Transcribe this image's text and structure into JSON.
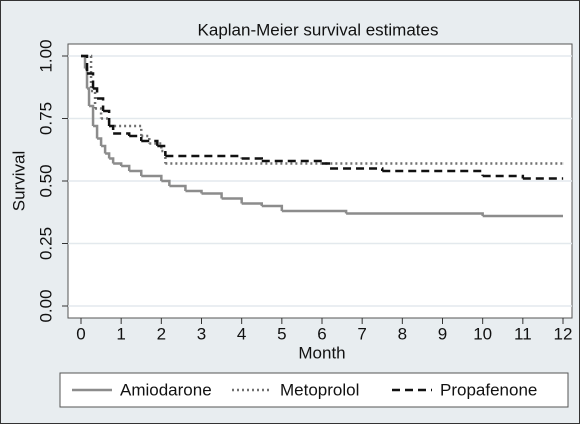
{
  "chart_data": {
    "type": "line",
    "drawstyle": "steps-post",
    "title": "Kaplan-Meier survival estimates",
    "x_label": "Month",
    "y_label": "Survival",
    "xlim": [
      0,
      12
    ],
    "xticks": [
      0,
      1,
      2,
      3,
      4,
      5,
      6,
      7,
      8,
      9,
      10,
      11,
      12
    ],
    "ylim": [
      0,
      1
    ],
    "yticks": [
      {
        "value": 0,
        "label": "0.00"
      },
      0.25,
      {
        "value": 0.5,
        "label": "0.50"
      },
      0.75,
      {
        "value": 1,
        "label": "1.00"
      }
    ],
    "grid": true,
    "legend": "bottom",
    "series": [
      {
        "name": "Amiodarone",
        "color": "#8c8c8c",
        "dash": "solid",
        "x": [
          0,
          0.1,
          0.15,
          0.2,
          0.3,
          0.4,
          0.5,
          0.6,
          0.7,
          0.8,
          1.0,
          1.2,
          1.5,
          2.0,
          2.2,
          2.6,
          3.0,
          3.5,
          4.0,
          4.5,
          5.0,
          6.6,
          10.0,
          12
        ],
        "values": [
          1.0,
          0.95,
          0.87,
          0.8,
          0.72,
          0.67,
          0.64,
          0.61,
          0.59,
          0.57,
          0.56,
          0.54,
          0.52,
          0.5,
          0.48,
          0.46,
          0.45,
          0.43,
          0.41,
          0.4,
          0.38,
          0.37,
          0.36,
          0.36
        ]
      },
      {
        "name": "Metoprolol",
        "color": "#707070",
        "dash": "dotted",
        "x": [
          0,
          0.25,
          0.35,
          0.5,
          0.7,
          1.5,
          1.7,
          2.0,
          2.1,
          12
        ],
        "values": [
          1.0,
          0.86,
          0.79,
          0.75,
          0.72,
          0.68,
          0.65,
          0.62,
          0.57,
          0.57
        ]
      },
      {
        "name": "Propafenone",
        "color": "#111111",
        "dash": "dashed",
        "x": [
          0,
          0.15,
          0.3,
          0.4,
          0.55,
          0.7,
          0.8,
          1.2,
          1.5,
          1.9,
          2.1,
          4.0,
          4.5,
          6.0,
          6.2,
          7.5,
          10.0,
          11.0,
          12
        ],
        "values": [
          1.0,
          0.93,
          0.87,
          0.83,
          0.78,
          0.72,
          0.69,
          0.68,
          0.66,
          0.64,
          0.6,
          0.59,
          0.58,
          0.57,
          0.55,
          0.54,
          0.52,
          0.51,
          0.51
        ]
      }
    ]
  }
}
